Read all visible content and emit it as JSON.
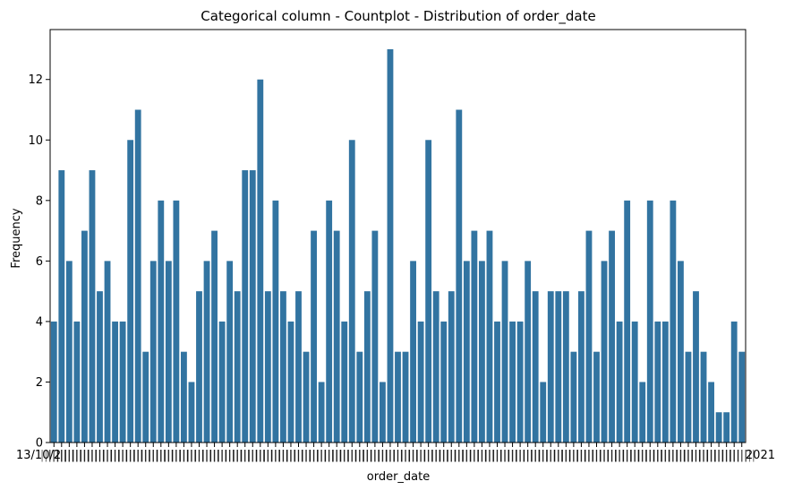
{
  "chart_data": {
    "type": "bar",
    "title": "Categorical column - Countplot - Distribution of order_date",
    "xlabel": "order_date",
    "ylabel": "Frequency",
    "ylim": [
      0,
      13.65
    ],
    "yticks": [
      0,
      2,
      4,
      6,
      8,
      10,
      12
    ],
    "grid": false,
    "bar_color": "#3274a1",
    "x_tick_labels_note": "overlapping/illegible",
    "x_tick_label_first": "13/10/2",
    "x_tick_label_last": "2021",
    "values": [
      4,
      9,
      6,
      4,
      7,
      9,
      5,
      6,
      4,
      4,
      10,
      11,
      3,
      6,
      8,
      6,
      8,
      3,
      2,
      5,
      6,
      7,
      4,
      6,
      5,
      9,
      9,
      12,
      5,
      8,
      5,
      4,
      5,
      3,
      7,
      2,
      8,
      7,
      4,
      10,
      3,
      5,
      7,
      2,
      13,
      3,
      3,
      6,
      4,
      10,
      5,
      4,
      5,
      11,
      6,
      7,
      6,
      7,
      4,
      6,
      4,
      4,
      6,
      5,
      2,
      5,
      5,
      5,
      3,
      5,
      7,
      3,
      6,
      7,
      4,
      8,
      4,
      2,
      8,
      4,
      4,
      8,
      6,
      3,
      5,
      3,
      2,
      1,
      1,
      4,
      3
    ]
  }
}
